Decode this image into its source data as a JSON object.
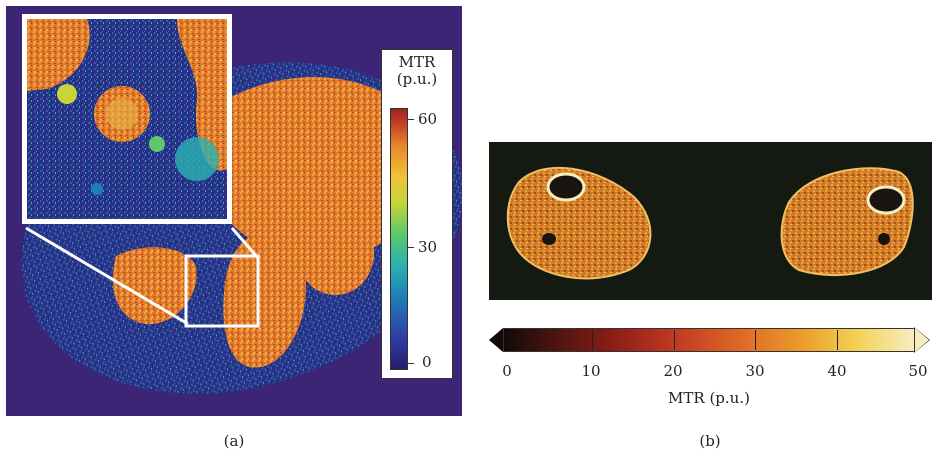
{
  "panel_a": {
    "colorbar": {
      "title_line1": "MTR",
      "title_line2": "(p.u.)",
      "ticks": [
        "60",
        "30",
        "0"
      ]
    },
    "caption": "(a)"
  },
  "panel_b": {
    "colorbar": {
      "ticks": [
        "0",
        "10",
        "20",
        "30",
        "40",
        "50"
      ],
      "label": "MTR (p.u.)"
    },
    "caption": "(b)"
  }
}
